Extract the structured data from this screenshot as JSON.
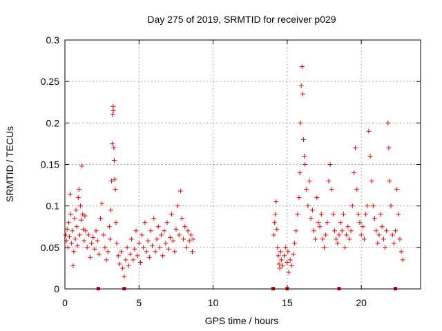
{
  "chart_data": {
    "type": "scatter",
    "title": "Day 275 of 2019, SRMTID for receiver p029",
    "xlabel": "GPS time / hours",
    "ylabel": "SRMTID / TECUs",
    "xlim": [
      0,
      24
    ],
    "ylim": [
      0,
      0.3
    ],
    "x_ticks": [
      0,
      5,
      10,
      15,
      20
    ],
    "x_tick_labels": [
      "0",
      "5",
      "10",
      "15",
      "20"
    ],
    "y_ticks": [
      0,
      0.05,
      0.1,
      0.15,
      0.2,
      0.25,
      0.3
    ],
    "y_tick_labels": [
      "0",
      "0.05",
      "0.1",
      "0.15",
      "0.2",
      "0.25",
      "0.3"
    ],
    "grid": true,
    "marker": "+",
    "color": "#e00000",
    "series": [
      {
        "name": "SRMTID",
        "points": [
          [
            0.05,
            0.065
          ],
          [
            0.1,
            0.058
          ],
          [
            0.15,
            0.072
          ],
          [
            0.2,
            0.05
          ],
          [
            0.25,
            0.08
          ],
          [
            0.3,
            0.063
          ],
          [
            0.35,
            0.114
          ],
          [
            0.4,
            0.09
          ],
          [
            0.45,
            0.055
          ],
          [
            0.5,
            0.07
          ],
          [
            0.55,
            0.028
          ],
          [
            0.6,
            0.045
          ],
          [
            0.65,
            0.085
          ],
          [
            0.7,
            0.06
          ],
          [
            0.75,
            0.095
          ],
          [
            0.8,
            0.075
          ],
          [
            0.85,
            0.052
          ],
          [
            0.9,
            0.11
          ],
          [
            0.95,
            0.12
          ],
          [
            1.0,
            0.065
          ],
          [
            1.05,
            0.1
          ],
          [
            1.1,
            0.083
          ],
          [
            1.15,
            0.148
          ],
          [
            1.2,
            0.09
          ],
          [
            1.25,
            0.072
          ],
          [
            1.3,
            0.058
          ],
          [
            1.35,
            0.088
          ],
          [
            1.4,
            0.07
          ],
          [
            1.5,
            0.05
          ],
          [
            1.6,
            0.065
          ],
          [
            1.7,
            0.038
          ],
          [
            1.8,
            0.055
          ],
          [
            1.9,
            0.062
          ],
          [
            2.0,
            0.048
          ],
          [
            2.1,
            0.07
          ],
          [
            2.2,
            0.058
          ],
          [
            2.3,
            0.042
          ],
          [
            2.4,
            0.085
          ],
          [
            2.5,
            0.103
          ],
          [
            2.6,
            0.065
          ],
          [
            2.7,
            0.05
          ],
          [
            2.8,
            0.035
          ],
          [
            2.9,
            0.045
          ],
          [
            3.0,
            0.075
          ],
          [
            3.05,
            0.06
          ],
          [
            3.1,
            0.095
          ],
          [
            3.15,
            0.13
          ],
          [
            3.2,
            0.175
          ],
          [
            3.22,
            0.21
          ],
          [
            3.25,
            0.22
          ],
          [
            3.27,
            0.215
          ],
          [
            3.3,
            0.17
          ],
          [
            3.33,
            0.155
          ],
          [
            3.36,
            0.132
          ],
          [
            3.4,
            0.12
          ],
          [
            3.45,
            0.08
          ],
          [
            3.5,
            0.055
          ],
          [
            3.6,
            0.04
          ],
          [
            3.7,
            0.03
          ],
          [
            3.8,
            0.045
          ],
          [
            3.9,
            0.025
          ],
          [
            4.0,
            0.015
          ],
          [
            4.1,
            0.035
          ],
          [
            4.2,
            0.05
          ],
          [
            4.3,
            0.028
          ],
          [
            4.4,
            0.042
          ],
          [
            4.5,
            0.06
          ],
          [
            4.6,
            0.035
          ],
          [
            4.7,
            0.048
          ],
          [
            4.8,
            0.07
          ],
          [
            4.9,
            0.04
          ],
          [
            5.0,
            0.055
          ],
          [
            5.1,
            0.032
          ],
          [
            5.2,
            0.065
          ],
          [
            5.3,
            0.05
          ],
          [
            5.4,
            0.08
          ],
          [
            5.5,
            0.045
          ],
          [
            5.6,
            0.058
          ],
          [
            5.7,
            0.038
          ],
          [
            5.8,
            0.07
          ],
          [
            5.9,
            0.052
          ],
          [
            6.0,
            0.085
          ],
          [
            6.1,
            0.045
          ],
          [
            6.2,
            0.06
          ],
          [
            6.3,
            0.075
          ],
          [
            6.4,
            0.05
          ],
          [
            6.5,
            0.065
          ],
          [
            6.6,
            0.04
          ],
          [
            6.7,
            0.07
          ],
          [
            6.8,
            0.055
          ],
          [
            6.9,
            0.08
          ],
          [
            7.0,
            0.048
          ],
          [
            7.1,
            0.062
          ],
          [
            7.2,
            0.09
          ],
          [
            7.3,
            0.058
          ],
          [
            7.4,
            0.045
          ],
          [
            7.5,
            0.072
          ],
          [
            7.6,
            0.1
          ],
          [
            7.7,
            0.065
          ],
          [
            7.8,
            0.118
          ],
          [
            7.9,
            0.085
          ],
          [
            8.0,
            0.06
          ],
          [
            8.1,
            0.075
          ],
          [
            8.2,
            0.05
          ],
          [
            8.3,
            0.07
          ],
          [
            8.4,
            0.058
          ],
          [
            8.5,
            0.065
          ],
          [
            8.6,
            0.045
          ],
          [
            8.65,
            0.06
          ],
          [
            14.1,
            0.065
          ],
          [
            14.15,
            0.08
          ],
          [
            14.2,
            0.09
          ],
          [
            14.25,
            0.105
          ],
          [
            14.3,
            0.072
          ],
          [
            14.35,
            0.05
          ],
          [
            14.4,
            0.04
          ],
          [
            14.45,
            0.03
          ],
          [
            14.5,
            0.025
          ],
          [
            14.55,
            0.045
          ],
          [
            14.6,
            0.035
          ],
          [
            14.7,
            0.028
          ],
          [
            14.8,
            0.04
          ],
          [
            14.9,
            0.05
          ],
          [
            15.0,
            0.032
          ],
          [
            15.05,
            0.045
          ],
          [
            15.1,
            0.02
          ],
          [
            15.2,
            0.035
          ],
          [
            15.3,
            0.028
          ],
          [
            15.4,
            0.042
          ],
          [
            15.5,
            0.055
          ],
          [
            15.6,
            0.07
          ],
          [
            15.7,
            0.09
          ],
          [
            15.8,
            0.11
          ],
          [
            15.85,
            0.14
          ],
          [
            15.9,
            0.2
          ],
          [
            15.95,
            0.245
          ],
          [
            16.0,
            0.268
          ],
          [
            16.05,
            0.235
          ],
          [
            16.1,
            0.18
          ],
          [
            16.15,
            0.16
          ],
          [
            16.2,
            0.15
          ],
          [
            16.3,
            0.12
          ],
          [
            16.4,
            0.1
          ],
          [
            16.5,
            0.13
          ],
          [
            16.6,
            0.085
          ],
          [
            16.7,
            0.095
          ],
          [
            16.8,
            0.07
          ],
          [
            16.9,
            0.06
          ],
          [
            17.0,
            0.11
          ],
          [
            17.1,
            0.08
          ],
          [
            17.2,
            0.075
          ],
          [
            17.3,
            0.09
          ],
          [
            17.4,
            0.06
          ],
          [
            17.5,
            0.05
          ],
          [
            17.6,
            0.065
          ],
          [
            17.7,
            0.08
          ],
          [
            17.8,
            0.13
          ],
          [
            17.9,
            0.15
          ],
          [
            18.0,
            0.12
          ],
          [
            18.1,
            0.09
          ],
          [
            18.2,
            0.07
          ],
          [
            18.3,
            0.06
          ],
          [
            18.4,
            0.055
          ],
          [
            18.5,
            0.065
          ],
          [
            18.6,
            0.08
          ],
          [
            18.7,
            0.07
          ],
          [
            18.8,
            0.09
          ],
          [
            18.9,
            0.05
          ],
          [
            19.0,
            0.065
          ],
          [
            19.1,
            0.075
          ],
          [
            19.2,
            0.06
          ],
          [
            19.3,
            0.07
          ],
          [
            19.4,
            0.1
          ],
          [
            19.5,
            0.14
          ],
          [
            19.6,
            0.17
          ],
          [
            19.7,
            0.12
          ],
          [
            19.8,
            0.09
          ],
          [
            19.9,
            0.08
          ],
          [
            20.0,
            0.065
          ],
          [
            20.1,
            0.075
          ],
          [
            20.2,
            0.06
          ],
          [
            20.3,
            0.09
          ],
          [
            20.4,
            0.1
          ],
          [
            20.5,
            0.19
          ],
          [
            20.6,
            0.16
          ],
          [
            20.7,
            0.13
          ],
          [
            20.8,
            0.1
          ],
          [
            20.9,
            0.085
          ],
          [
            21.0,
            0.07
          ],
          [
            21.1,
            0.055
          ],
          [
            21.2,
            0.065
          ],
          [
            21.3,
            0.09
          ],
          [
            21.4,
            0.075
          ],
          [
            21.5,
            0.06
          ],
          [
            21.6,
            0.05
          ],
          [
            21.7,
            0.07
          ],
          [
            21.8,
            0.2
          ],
          [
            21.85,
            0.17
          ],
          [
            21.9,
            0.13
          ],
          [
            22.0,
            0.1
          ],
          [
            22.1,
            0.065
          ],
          [
            22.2,
            0.055
          ],
          [
            22.3,
            0.07
          ],
          [
            22.4,
            0.12
          ],
          [
            22.5,
            0.09
          ],
          [
            22.6,
            0.06
          ],
          [
            22.7,
            0.045
          ],
          [
            22.8,
            0.035
          ]
        ]
      }
    ],
    "gap_markers_x": [
      2.25,
      4.0,
      14.05,
      15.0,
      18.5,
      22.3
    ]
  }
}
